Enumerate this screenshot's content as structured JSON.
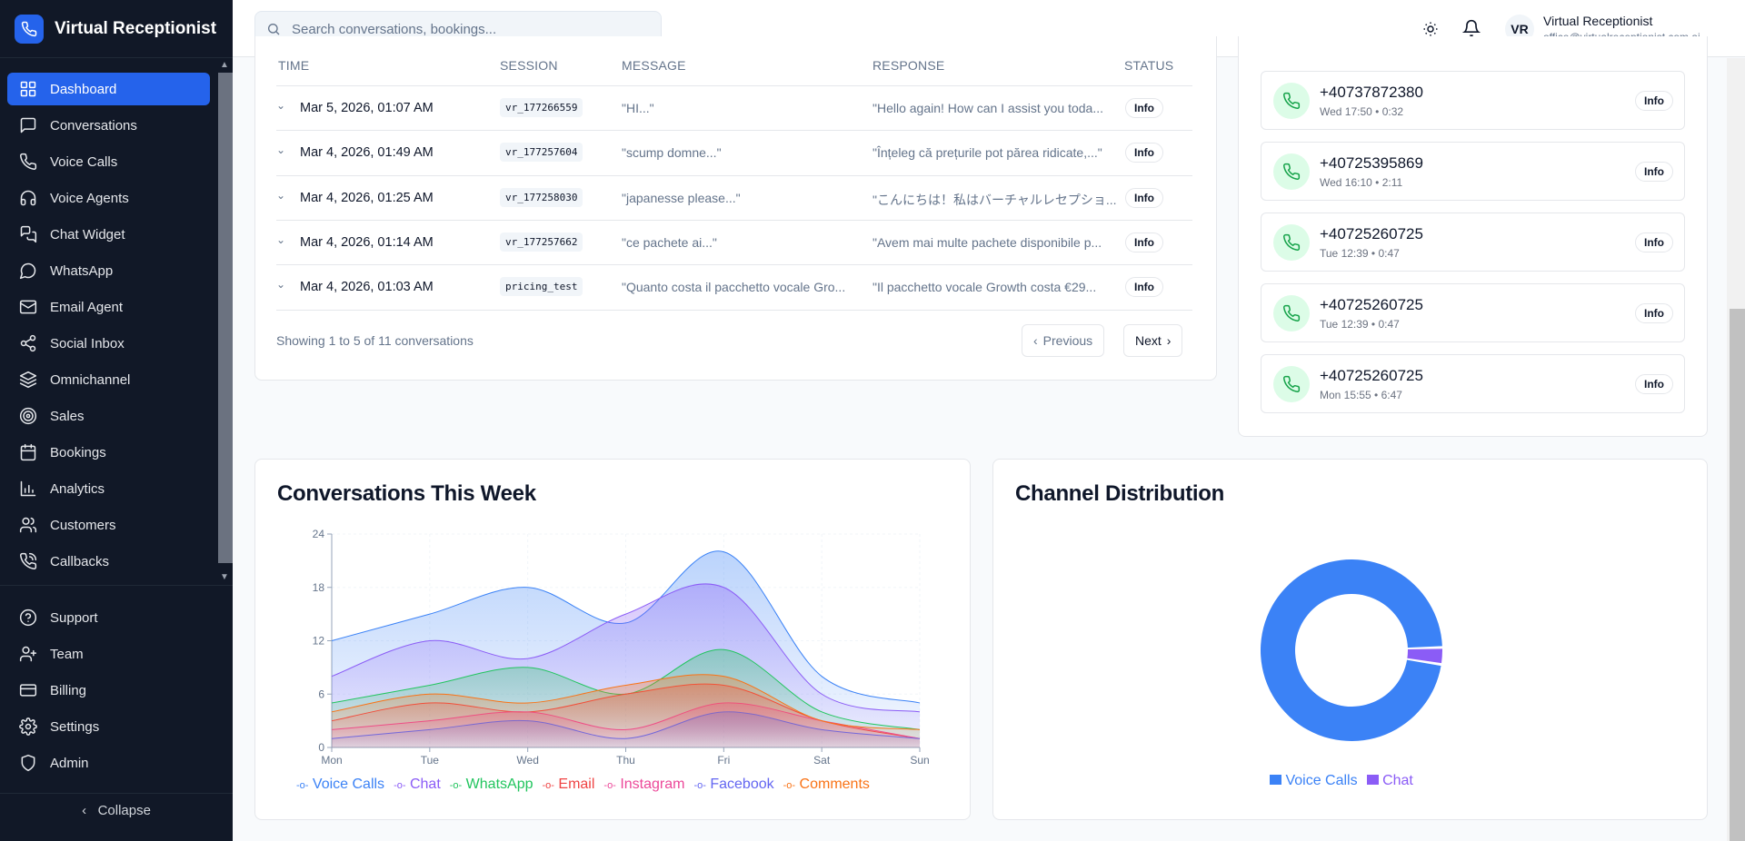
{
  "app": {
    "title": "Virtual Receptionist"
  },
  "sidebar": {
    "items": [
      {
        "label": "Dashboard",
        "icon": "dashboard-icon",
        "active": true
      },
      {
        "label": "Conversations",
        "icon": "message-square-icon"
      },
      {
        "label": "Voice Calls",
        "icon": "phone-icon"
      },
      {
        "label": "Voice Agents",
        "icon": "headphones-icon"
      },
      {
        "label": "Chat Widget",
        "icon": "chat-widget-icon"
      },
      {
        "label": "WhatsApp",
        "icon": "message-circle-icon"
      },
      {
        "label": "Email Agent",
        "icon": "mail-icon"
      },
      {
        "label": "Social Inbox",
        "icon": "share-icon"
      },
      {
        "label": "Omnichannel",
        "icon": "layers-icon"
      },
      {
        "label": "Sales",
        "icon": "target-icon"
      },
      {
        "label": "Bookings",
        "icon": "calendar-icon"
      },
      {
        "label": "Analytics",
        "icon": "bar-chart-icon"
      },
      {
        "label": "Customers",
        "icon": "users-icon"
      },
      {
        "label": "Callbacks",
        "icon": "phone-callback-icon"
      }
    ],
    "bottom_items": [
      {
        "label": "Support",
        "icon": "help-circle-icon"
      },
      {
        "label": "Team",
        "icon": "user-plus-icon"
      },
      {
        "label": "Billing",
        "icon": "credit-card-icon"
      },
      {
        "label": "Settings",
        "icon": "gear-icon"
      },
      {
        "label": "Admin",
        "icon": "shield-icon"
      }
    ],
    "collapse_label": "Collapse"
  },
  "header": {
    "search_placeholder": "Search conversations, bookings...",
    "user": {
      "initials": "VR",
      "name": "Virtual Receptionist",
      "email": "office@virtualreceptionist.com.ai"
    }
  },
  "conversations": {
    "columns": [
      "TIME",
      "SESSION",
      "MESSAGE",
      "RESPONSE",
      "STATUS"
    ],
    "rows": [
      {
        "time": "Mar 5, 2026, 01:07 AM",
        "session": "vr_177266559",
        "message": "\"HI...\"",
        "response": "\"Hello again! How can I assist you toda...",
        "status": "Info"
      },
      {
        "time": "Mar 4, 2026, 01:49 AM",
        "session": "vr_177257604",
        "message": "\"scump domne...\"",
        "response": "\"Înțeleg că prețurile pot părea ridicate,...\"",
        "status": "Info"
      },
      {
        "time": "Mar 4, 2026, 01:25 AM",
        "session": "vr_177258030",
        "message": "\"japanesse please...\"",
        "response": "\"こんにちは！私はバーチャルレセプショ...",
        "status": "Info"
      },
      {
        "time": "Mar 4, 2026, 01:14 AM",
        "session": "vr_177257662",
        "message": "\"ce pachete ai...\"",
        "response": "\"Avem mai multe pachete disponibile p...",
        "status": "Info"
      },
      {
        "time": "Mar 4, 2026, 01:03 AM",
        "session": "pricing_test",
        "message": "\"Quanto costa il pacchetto vocale Gro...",
        "response": "\"Il pacchetto vocale Growth costa €29...",
        "status": "Info"
      }
    ],
    "footer": "Showing 1 to 5 of 11 conversations",
    "prev_label": "Previous",
    "next_label": "Next"
  },
  "calls": [
    {
      "number": "+40737872380",
      "meta": "Wed 17:50 • 0:32",
      "status": "Info"
    },
    {
      "number": "+40725395869",
      "meta": "Wed 16:10 • 2:11",
      "status": "Info"
    },
    {
      "number": "+40725260725",
      "meta": "Tue 12:39 • 0:47",
      "status": "Info"
    },
    {
      "number": "+40725260725",
      "meta": "Tue 12:39 • 0:47",
      "status": "Info"
    },
    {
      "number": "+40725260725",
      "meta": "Mon 15:55 • 6:47",
      "status": "Info"
    }
  ],
  "chart_data": [
    {
      "type": "area",
      "title": "Conversations This Week",
      "categories": [
        "Mon",
        "Tue",
        "Wed",
        "Thu",
        "Fri",
        "Sat",
        "Sun"
      ],
      "ylim": [
        0,
        24
      ],
      "yticks": [
        "0",
        "6",
        "12",
        "18",
        "24"
      ],
      "grid": true,
      "legend": "bottom",
      "series": [
        {
          "name": "Voice Calls",
          "color": "#3b82f6",
          "values": [
            12,
            15,
            18,
            14,
            22,
            8,
            5
          ]
        },
        {
          "name": "Chat",
          "color": "#8b5cf6",
          "values": [
            8,
            12,
            10,
            15,
            18,
            6,
            4
          ]
        },
        {
          "name": "WhatsApp",
          "color": "#22c55e",
          "values": [
            5,
            7,
            9,
            6,
            11,
            4,
            2
          ]
        },
        {
          "name": "Email",
          "color": "#ef4444",
          "values": [
            3,
            5,
            4,
            6,
            7,
            3,
            1
          ]
        },
        {
          "name": "Instagram",
          "color": "#ec4899",
          "values": [
            2,
            3,
            4,
            2,
            5,
            3,
            1
          ]
        },
        {
          "name": "Facebook",
          "color": "#6366f1",
          "values": [
            1,
            2,
            3,
            1,
            4,
            2,
            1
          ]
        },
        {
          "name": "Comments",
          "color": "#f97316",
          "values": [
            4,
            6,
            5,
            7,
            8,
            3,
            2
          ]
        }
      ]
    },
    {
      "type": "pie",
      "title": "Channel Distribution",
      "legend": "bottom",
      "categories": [
        "Voice Calls",
        "Chat"
      ],
      "values": [
        97,
        3
      ],
      "colors": [
        "#3b82f6",
        "#8b5cf6"
      ]
    }
  ]
}
